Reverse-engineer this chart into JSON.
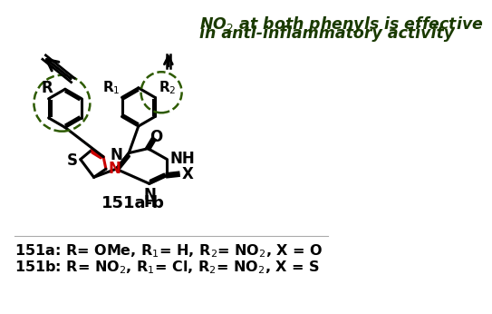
{
  "bg_color": "#ffffff",
  "black": "#000000",
  "red": "#cc0000",
  "dark_green": "#1a3a00",
  "dash_color": "#2d5a00",
  "title1": "NO$_2$ at both phenyls is effective",
  "title2": "in anti-inflammatory activity",
  "label_ab": "151a-b",
  "label_a": "151a: R= OMe, R$_1$= H, R$_2$= NO$_2$, X = O",
  "label_b": "151b: R= NO$_2$, R$_1$= Cl, R$_2$= NO$_2$, X = S"
}
